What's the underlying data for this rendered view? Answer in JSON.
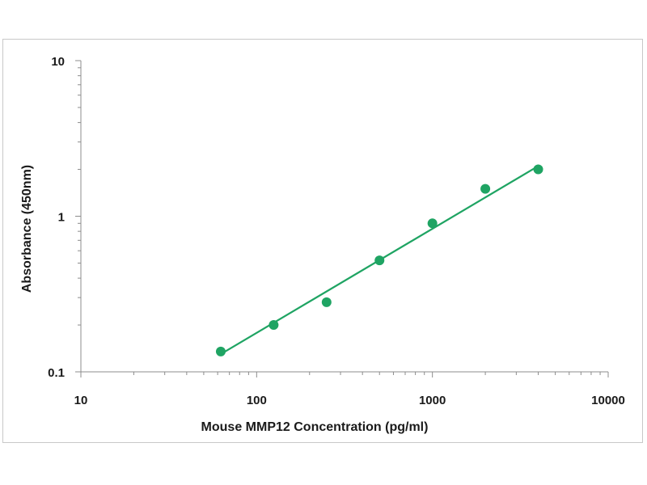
{
  "chart_data": {
    "type": "scatter",
    "title": "",
    "xlabel": "Mouse MMP12  Concentration (pg/ml)",
    "ylabel": "Absorbance (450nm)",
    "x_scale": "log",
    "y_scale": "log",
    "xlim": [
      10,
      10000
    ],
    "ylim": [
      0.1,
      10
    ],
    "x_ticks": [
      "10",
      "100",
      "1000",
      "10000"
    ],
    "y_ticks": [
      "0.1",
      "1",
      "10"
    ],
    "grid": false,
    "legend": "none",
    "series": [
      {
        "x": [
          62.5,
          125,
          250,
          500,
          1000,
          2000,
          4000
        ],
        "y": [
          0.135,
          0.2,
          0.28,
          0.52,
          0.9,
          1.5,
          2.0
        ],
        "color": "#1fa463",
        "marker": "circle"
      }
    ],
    "fit_line": {
      "x": [
        62.5,
        4000
      ],
      "y": [
        0.13,
        2.1
      ],
      "color": "#1fa463"
    }
  }
}
